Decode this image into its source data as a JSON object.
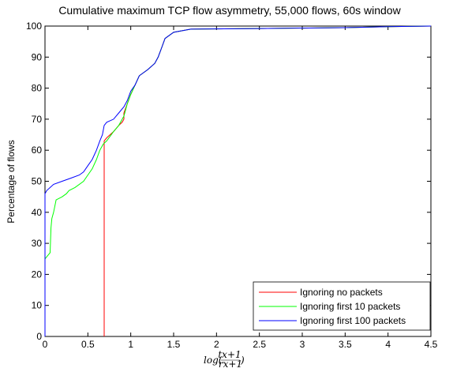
{
  "chart_data": {
    "type": "line",
    "title": "Cumulative maximum TCP flow asymmetry, 55,000 flows, 60s window",
    "xlabel": "log((tx+1)/(rx+1))",
    "ylabel": "Percentage of flows",
    "xlim": [
      0,
      4.5
    ],
    "ylim": [
      0,
      100
    ],
    "x_ticks": [
      0,
      0.5,
      1,
      1.5,
      2,
      2.5,
      3,
      3.5,
      4,
      4.5
    ],
    "x_tick_labels": [
      "0",
      "0.5",
      "1",
      "1.5",
      "2",
      "2.5",
      "3",
      "3.5",
      "4",
      "4.5"
    ],
    "y_ticks": [
      0,
      10,
      20,
      30,
      40,
      50,
      60,
      70,
      80,
      90,
      100
    ],
    "y_tick_labels": [
      "0",
      "10",
      "20",
      "30",
      "40",
      "50",
      "60",
      "70",
      "80",
      "90",
      "100"
    ],
    "grid": false,
    "legend_position": "bottom-right",
    "series": [
      {
        "name": "Ignoring no packets",
        "color": "#ff0000",
        "points": [
          [
            0.69,
            0
          ],
          [
            0.69,
            63
          ],
          [
            0.72,
            64
          ],
          [
            0.8,
            66
          ],
          [
            0.86,
            68
          ],
          [
            0.9,
            69
          ],
          [
            0.92,
            70
          ],
          [
            0.92,
            72
          ],
          [
            0.96,
            75
          ],
          [
            1.0,
            78
          ],
          [
            1.05,
            81
          ],
          [
            1.1,
            84
          ],
          [
            1.2,
            86
          ],
          [
            1.28,
            88
          ],
          [
            1.32,
            90
          ],
          [
            1.36,
            93
          ],
          [
            1.4,
            96
          ],
          [
            1.5,
            98
          ],
          [
            1.7,
            99
          ],
          [
            2.5,
            99.2
          ],
          [
            3.5,
            99.5
          ],
          [
            4.0,
            99.8
          ],
          [
            4.5,
            100
          ]
        ]
      },
      {
        "name": "Ignoring first 10 packets",
        "color": "#00ff00",
        "points": [
          [
            0,
            25
          ],
          [
            0.03,
            26
          ],
          [
            0.06,
            27
          ],
          [
            0.07,
            35
          ],
          [
            0.08,
            38
          ],
          [
            0.1,
            40
          ],
          [
            0.13,
            44
          ],
          [
            0.2,
            45
          ],
          [
            0.25,
            46
          ],
          [
            0.28,
            47
          ],
          [
            0.35,
            48
          ],
          [
            0.45,
            50
          ],
          [
            0.5,
            52
          ],
          [
            0.55,
            54
          ],
          [
            0.6,
            57
          ],
          [
            0.64,
            60
          ],
          [
            0.68,
            62
          ],
          [
            0.72,
            63
          ],
          [
            0.8,
            66
          ],
          [
            0.86,
            68
          ],
          [
            0.92,
            71
          ],
          [
            0.96,
            75
          ],
          [
            1.0,
            78
          ],
          [
            1.05,
            81
          ],
          [
            1.1,
            84
          ],
          [
            1.2,
            86
          ],
          [
            1.28,
            88
          ],
          [
            1.32,
            90
          ],
          [
            1.36,
            93
          ],
          [
            1.4,
            96
          ],
          [
            1.5,
            98
          ],
          [
            1.7,
            99
          ],
          [
            2.5,
            99.2
          ],
          [
            3.5,
            99.5
          ],
          [
            4.0,
            99.8
          ],
          [
            4.5,
            100
          ]
        ]
      },
      {
        "name": "Ignoring first 100 packets",
        "color": "#0000ff",
        "points": [
          [
            0,
            0
          ],
          [
            0,
            46
          ],
          [
            0.02,
            47
          ],
          [
            0.1,
            49
          ],
          [
            0.2,
            50
          ],
          [
            0.3,
            51
          ],
          [
            0.4,
            52
          ],
          [
            0.45,
            53
          ],
          [
            0.5,
            55
          ],
          [
            0.55,
            57
          ],
          [
            0.6,
            60
          ],
          [
            0.64,
            63
          ],
          [
            0.67,
            65
          ],
          [
            0.69,
            68
          ],
          [
            0.72,
            69
          ],
          [
            0.8,
            70
          ],
          [
            0.86,
            72
          ],
          [
            0.92,
            74
          ],
          [
            0.96,
            76
          ],
          [
            1.0,
            79
          ],
          [
            1.05,
            81
          ],
          [
            1.1,
            84
          ],
          [
            1.2,
            86
          ],
          [
            1.28,
            88
          ],
          [
            1.32,
            90
          ],
          [
            1.36,
            93
          ],
          [
            1.4,
            96
          ],
          [
            1.5,
            98
          ],
          [
            1.7,
            99
          ],
          [
            2.5,
            99.2
          ],
          [
            3.5,
            99.5
          ],
          [
            4.0,
            99.8
          ],
          [
            4.5,
            100
          ]
        ]
      }
    ]
  }
}
